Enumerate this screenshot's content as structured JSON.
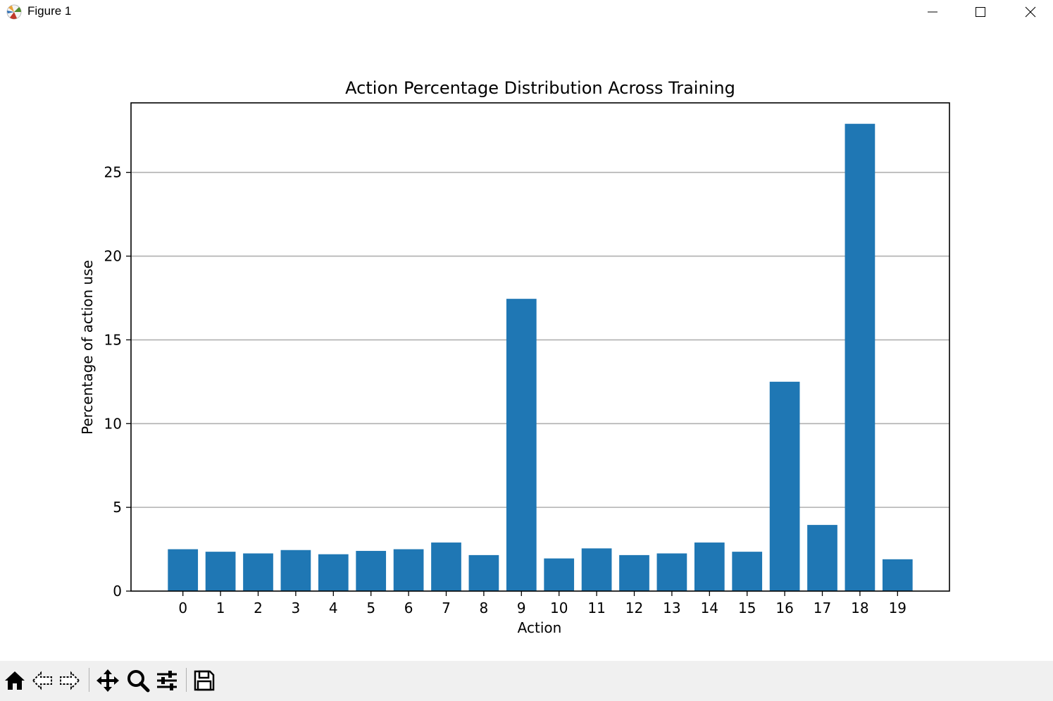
{
  "window": {
    "title": "Figure 1",
    "icons": {
      "app": "matplotlib-icon",
      "minimize": "minimize-icon",
      "maximize": "maximize-icon",
      "close": "close-icon"
    }
  },
  "toolbar": {
    "tools": [
      "home-icon",
      "back-icon",
      "forward-icon",
      "pan-icon",
      "zoom-icon",
      "configure-subplots-icon",
      "save-icon"
    ]
  },
  "chart_data": {
    "type": "bar",
    "title": "Action Percentage Distribution Across Training",
    "xlabel": "Action",
    "ylabel": "Percentage of action use",
    "categories": [
      "0",
      "1",
      "2",
      "3",
      "4",
      "5",
      "6",
      "7",
      "8",
      "9",
      "10",
      "11",
      "12",
      "13",
      "14",
      "15",
      "16",
      "17",
      "18",
      "19"
    ],
    "values": [
      2.5,
      2.35,
      2.25,
      2.45,
      2.2,
      2.4,
      2.5,
      2.9,
      2.15,
      17.45,
      1.95,
      2.55,
      2.15,
      2.25,
      2.9,
      2.35,
      12.5,
      3.95,
      27.9,
      1.9
    ],
    "yticks": [
      "0",
      "5",
      "10",
      "15",
      "20",
      "25"
    ],
    "ylim": [
      0,
      29.15
    ],
    "grid": "y",
    "bar_color": "#1f77b4"
  }
}
